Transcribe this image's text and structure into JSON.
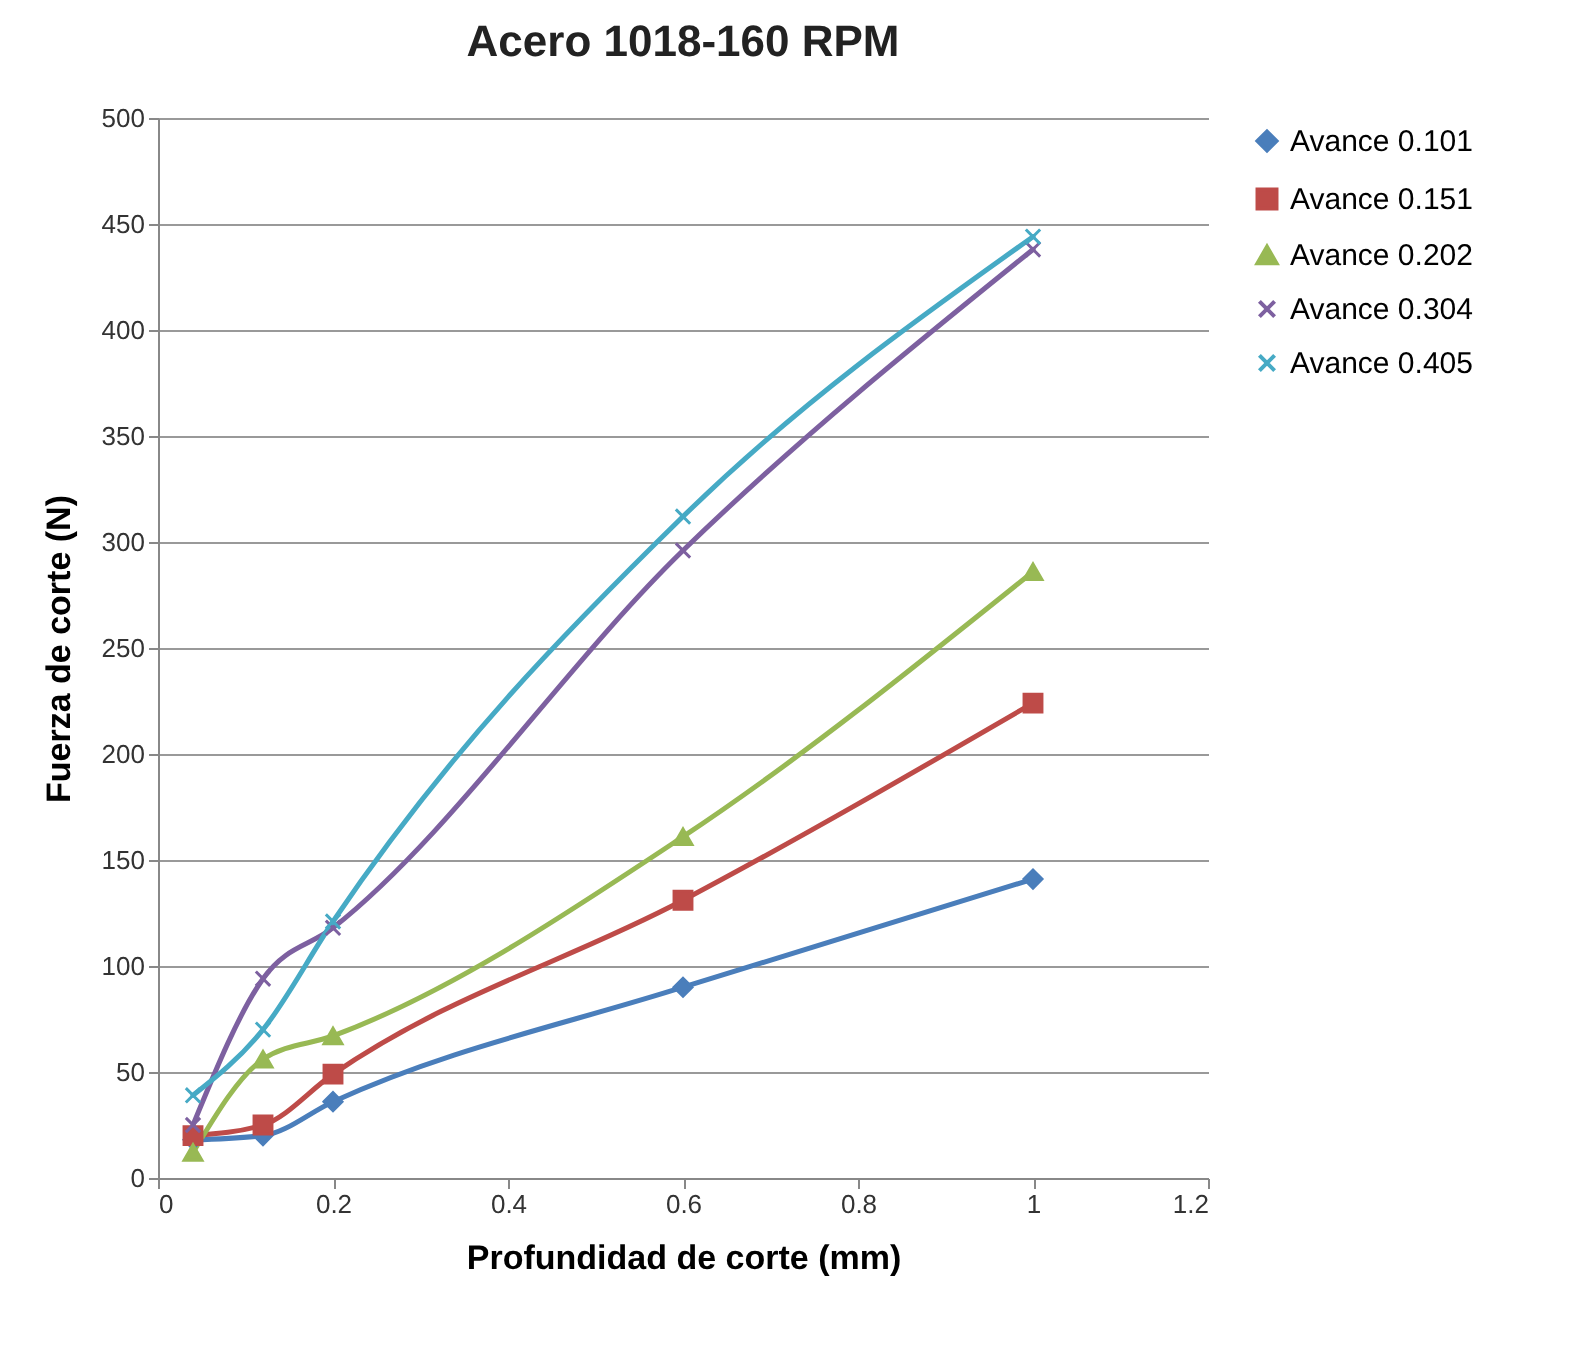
{
  "chart_data": {
    "type": "line",
    "title": "Acero 1018-160 RPM",
    "xlabel": "Profundidad de corte (mm)",
    "ylabel": "Fuerza de corte (N)",
    "x": [
      0.04,
      0.12,
      0.2,
      0.6,
      1.0
    ],
    "series": [
      {
        "name": "Avance 0.101",
        "color": "#4a7ebb",
        "marker": "diamond",
        "values": [
          18,
          20,
          36,
          90,
          141
        ]
      },
      {
        "name": "Avance 0.151",
        "color": "#be4b48",
        "marker": "square",
        "values": [
          20,
          25,
          49,
          131,
          224
        ]
      },
      {
        "name": "Avance 0.202",
        "color": "#98b954",
        "marker": "triangle",
        "values": [
          12,
          56,
          67,
          161,
          286
        ]
      },
      {
        "name": "Avance 0.304",
        "color": "#7d60a0",
        "marker": "cross",
        "values": [
          25,
          94,
          118,
          296,
          438
        ]
      },
      {
        "name": "Avance 0.405",
        "color": "#46aac5",
        "marker": "cross",
        "values": [
          39,
          70,
          121,
          312,
          444
        ]
      }
    ],
    "xlim": [
      0,
      1.2
    ],
    "xticks": [
      0,
      0.2,
      0.4,
      0.6,
      0.8,
      1,
      1.2
    ],
    "ylim": [
      0,
      500
    ],
    "yticks": [
      0,
      50,
      100,
      150,
      200,
      250,
      300,
      350,
      400,
      450,
      500
    ],
    "grid": "y",
    "legend": "right",
    "line_style": "solid"
  }
}
